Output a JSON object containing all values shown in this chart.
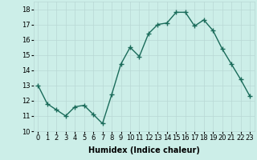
{
  "x": [
    0,
    1,
    2,
    3,
    4,
    5,
    6,
    7,
    8,
    9,
    10,
    11,
    12,
    13,
    14,
    15,
    16,
    17,
    18,
    19,
    20,
    21,
    22,
    23
  ],
  "y": [
    13.0,
    11.8,
    11.4,
    11.0,
    11.6,
    11.7,
    11.1,
    10.5,
    12.4,
    14.4,
    15.5,
    14.9,
    16.4,
    17.0,
    17.1,
    17.8,
    17.8,
    16.9,
    17.3,
    16.6,
    15.4,
    14.4,
    13.4,
    12.3
  ],
  "line_color": "#1a6b5a",
  "marker": "+",
  "markersize": 4,
  "linewidth": 1.0,
  "bg_color": "#cceee8",
  "xlabel": "Humidex (Indice chaleur)",
  "ylim": [
    10,
    18.5
  ],
  "xlim": [
    -0.5,
    23.5
  ],
  "yticks": [
    10,
    11,
    12,
    13,
    14,
    15,
    16,
    17,
    18
  ],
  "xticks": [
    0,
    1,
    2,
    3,
    4,
    5,
    6,
    7,
    8,
    9,
    10,
    11,
    12,
    13,
    14,
    15,
    16,
    17,
    18,
    19,
    20,
    21,
    22,
    23
  ],
  "xlabel_fontsize": 7,
  "tick_fontsize": 6,
  "grid_color": "#b8d8d4"
}
